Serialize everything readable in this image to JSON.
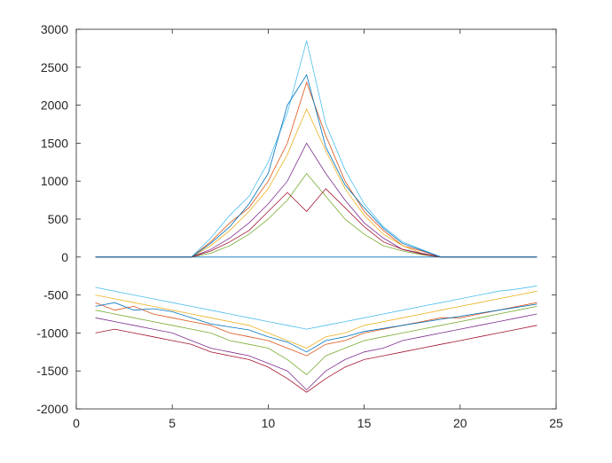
{
  "chart_data": {
    "type": "line",
    "title": "",
    "xlabel": "",
    "ylabel": "",
    "xlim": [
      0,
      25
    ],
    "ylim": [
      -2000,
      3000
    ],
    "x_ticks": [
      0,
      5,
      10,
      15,
      20,
      25
    ],
    "y_ticks": [
      -2000,
      -1500,
      -1000,
      -500,
      0,
      500,
      1000,
      1500,
      2000,
      2500,
      3000
    ],
    "x_tick_labels": [
      "0",
      "5",
      "10",
      "15",
      "20",
      "25"
    ],
    "y_tick_labels": [
      "-2000",
      "-1500",
      "-1000",
      "-500",
      "0",
      "500",
      "1000",
      "1500",
      "2000",
      "2500",
      "3000"
    ],
    "grid": false,
    "legend": "none",
    "x": [
      1,
      2,
      3,
      4,
      5,
      6,
      7,
      8,
      9,
      10,
      11,
      12,
      13,
      14,
      15,
      16,
      17,
      18,
      19,
      20,
      21,
      22,
      23,
      24
    ],
    "series_count_approx": "hundreds (many overlapping traces)",
    "series": [
      {
        "values": [
          0,
          0,
          0,
          0,
          0,
          0,
          0,
          0,
          0,
          0,
          0,
          0,
          0,
          0,
          0,
          0,
          0,
          0,
          0,
          0,
          0,
          0,
          0,
          0
        ]
      },
      {
        "values": [
          0,
          0,
          0,
          0,
          0,
          0,
          200,
          450,
          650,
          1000,
          1500,
          2300,
          1600,
          1000,
          600,
          350,
          150,
          80,
          0,
          0,
          0,
          0,
          0,
          0
        ]
      },
      {
        "values": [
          0,
          0,
          0,
          0,
          0,
          0,
          150,
          350,
          600,
          900,
          1350,
          1950,
          1400,
          900,
          550,
          300,
          150,
          50,
          0,
          0,
          0,
          0,
          0,
          0
        ]
      },
      {
        "values": [
          0,
          0,
          0,
          0,
          0,
          0,
          100,
          250,
          450,
          700,
          1000,
          1500,
          1100,
          750,
          450,
          250,
          100,
          50,
          0,
          0,
          0,
          0,
          0,
          0
        ]
      },
      {
        "values": [
          0,
          0,
          0,
          0,
          0,
          0,
          50,
          150,
          300,
          500,
          750,
          1100,
          800,
          500,
          300,
          150,
          80,
          30,
          0,
          0,
          0,
          0,
          0,
          0
        ]
      },
      {
        "values": [
          0,
          0,
          0,
          0,
          0,
          0,
          250,
          550,
          800,
          1250,
          1900,
          2850,
          1750,
          1150,
          700,
          400,
          200,
          100,
          0,
          0,
          0,
          0,
          0,
          0
        ]
      },
      {
        "values": [
          0,
          0,
          0,
          0,
          0,
          0,
          80,
          200,
          350,
          600,
          850,
          600,
          900,
          650,
          400,
          200,
          100,
          40,
          0,
          0,
          0,
          0,
          0,
          0
        ]
      },
      {
        "values": [
          0,
          0,
          0,
          0,
          0,
          0,
          180,
          400,
          700,
          1100,
          2000,
          2400,
          1450,
          950,
          650,
          380,
          180,
          90,
          0,
          0,
          0,
          0,
          0,
          0
        ]
      },
      {
        "values": [
          -600,
          -700,
          -650,
          -750,
          -800,
          -850,
          -900,
          -1000,
          -1050,
          -1100,
          -1200,
          -1300,
          -1150,
          -1100,
          -1000,
          -950,
          -900,
          -850,
          -800,
          -800,
          -750,
          -700,
          -650,
          -600
        ]
      },
      {
        "values": [
          -500,
          -550,
          -600,
          -650,
          -700,
          -750,
          -800,
          -850,
          -900,
          -1000,
          -1100,
          -1200,
          -1050,
          -1000,
          -900,
          -850,
          -800,
          -750,
          -700,
          -650,
          -600,
          -550,
          -500,
          -450
        ]
      },
      {
        "values": [
          -800,
          -850,
          -900,
          -950,
          -1000,
          -1100,
          -1200,
          -1250,
          -1300,
          -1400,
          -1500,
          -1750,
          -1500,
          -1350,
          -1250,
          -1200,
          -1100,
          -1050,
          -1000,
          -950,
          -900,
          -850,
          -800,
          -750
        ]
      },
      {
        "values": [
          -700,
          -750,
          -800,
          -850,
          -900,
          -950,
          -1000,
          -1100,
          -1150,
          -1200,
          -1350,
          -1550,
          -1300,
          -1200,
          -1100,
          -1050,
          -1000,
          -950,
          -900,
          -850,
          -800,
          -750,
          -700,
          -650
        ]
      },
      {
        "values": [
          -400,
          -450,
          -500,
          -550,
          -600,
          -650,
          -700,
          -750,
          -800,
          -850,
          -900,
          -950,
          -900,
          -850,
          -800,
          -750,
          -700,
          -650,
          -600,
          -550,
          -500,
          -450,
          -420,
          -380
        ]
      },
      {
        "values": [
          -1000,
          -950,
          -1000,
          -1050,
          -1100,
          -1150,
          -1250,
          -1300,
          -1350,
          -1450,
          -1600,
          -1780,
          -1600,
          -1450,
          -1350,
          -1300,
          -1250,
          -1200,
          -1150,
          -1100,
          -1050,
          -1000,
          -950,
          -900
        ]
      },
      {
        "values": [
          -650,
          -600,
          -700,
          -680,
          -720,
          -800,
          -880,
          -920,
          -960,
          -1050,
          -1120,
          -1250,
          -1100,
          -1050,
          -980,
          -940,
          -900,
          -860,
          -820,
          -780,
          -740,
          -700,
          -660,
          -620
        ]
      }
    ],
    "colors": [
      "#0072BD",
      "#D95319",
      "#EDB120",
      "#7E2F8E",
      "#77AC30",
      "#4DBEEE",
      "#A2142F"
    ]
  }
}
